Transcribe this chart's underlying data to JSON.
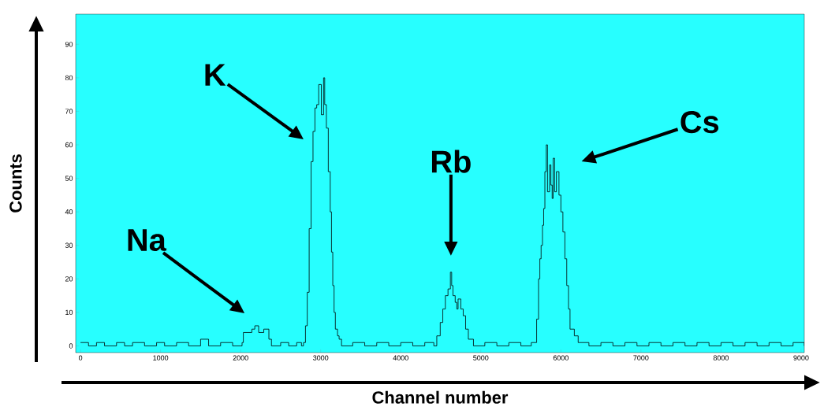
{
  "chart_data": {
    "type": "step",
    "xlabel": "Channel number",
    "ylabel": "Counts",
    "x": [
      0,
      100,
      200,
      300,
      450,
      550,
      650,
      800,
      950,
      1050,
      1200,
      1350,
      1500,
      1600,
      1750,
      1900,
      2018,
      2034,
      2098,
      2140,
      2177,
      2225,
      2289,
      2353,
      2385,
      2500,
      2600,
      2700,
      2760,
      2785,
      2810,
      2832,
      2856,
      2880,
      2904,
      2928,
      2950,
      2975,
      3008,
      3036,
      3050,
      3071,
      3095,
      3119,
      3135,
      3151,
      3167,
      3183,
      3210,
      3230,
      3260,
      3400,
      3550,
      3700,
      3850,
      4000,
      4150,
      4300,
      4413,
      4450,
      4493,
      4525,
      4557,
      4590,
      4620,
      4636,
      4652,
      4680,
      4700,
      4716,
      4750,
      4780,
      4810,
      4844,
      4908,
      5050,
      5200,
      5350,
      5500,
      5630,
      5673,
      5697,
      5721,
      5737,
      5753,
      5770,
      5785,
      5800,
      5817,
      5833,
      5859,
      5875,
      5891,
      5903,
      5922,
      5944,
      5976,
      6000,
      6025,
      6050,
      6073,
      6095,
      6114,
      6168,
      6216,
      6350,
      6500,
      6650,
      6800,
      6950,
      7100,
      7250,
      7400,
      7550,
      7700,
      7850,
      8000,
      8150,
      8300,
      8450,
      8600,
      8750,
      8900,
      9040
    ],
    "series": [
      {
        "color": "#000000",
        "values": [
          1,
          0,
          1,
          0,
          1,
          0,
          1,
          0,
          1,
          0,
          1,
          0,
          2,
          0,
          1,
          0,
          1,
          4,
          4,
          5,
          6,
          4,
          5,
          2,
          0,
          1,
          0,
          1,
          0,
          1,
          6,
          16,
          35,
          55,
          64,
          71,
          72,
          78,
          69,
          80,
          72,
          65,
          52,
          40,
          28,
          18,
          10,
          5,
          3,
          2,
          0,
          1,
          0,
          1,
          0,
          1,
          0,
          1,
          0,
          3,
          7,
          11,
          15,
          17,
          22,
          18,
          15,
          13,
          11,
          14,
          11,
          9,
          5,
          2,
          0,
          1,
          0,
          1,
          0,
          1,
          1,
          8,
          20,
          26,
          30,
          36,
          41,
          52,
          60,
          46,
          54,
          48,
          44,
          56,
          46,
          52,
          45,
          40,
          34,
          26,
          18,
          11,
          5,
          3,
          1,
          0,
          1,
          0,
          1,
          0,
          1,
          0,
          1,
          0,
          1,
          0,
          1,
          0,
          1,
          0,
          1,
          0,
          1,
          0
        ]
      }
    ],
    "xlim": [
      -60,
      9040
    ],
    "ylim": [
      -2,
      99
    ],
    "xticks": [
      0,
      1000,
      2000,
      3000,
      4000,
      5000,
      6000,
      7000,
      8000,
      9000
    ],
    "yticks": [
      0,
      10,
      20,
      30,
      40,
      50,
      60,
      70,
      80,
      90
    ],
    "annotations": [
      "Na",
      "K",
      "Rb",
      "Cs"
    ]
  }
}
